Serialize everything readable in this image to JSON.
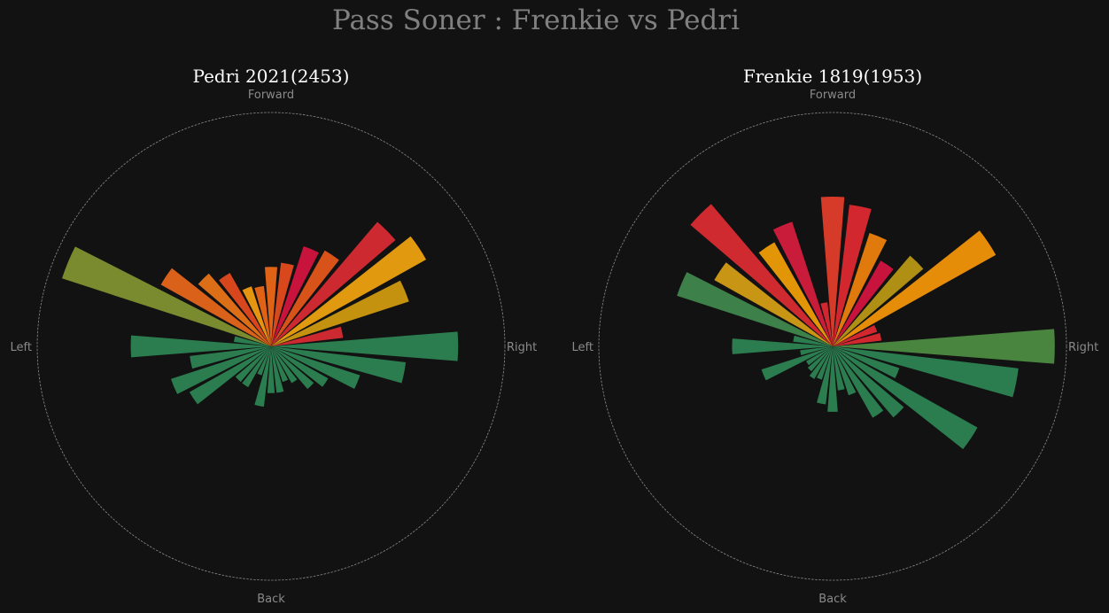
{
  "figure": {
    "title": "Pass Soner : Frenkie vs Pedri",
    "background": "#121212",
    "title_color": "#808080",
    "label_color": "#8a8a8a",
    "circle_color": "#8c8c8c"
  },
  "chart_data": [
    {
      "type": "polar-bar",
      "title": "Pedri 2021(2453)",
      "direction_labels": [
        "Forward",
        "Right",
        "Back",
        "Left"
      ],
      "angle_unit": "degrees clockwise from Forward",
      "radial_max": 100,
      "grid": false,
      "bars": [
        {
          "angle": 0,
          "value": 34,
          "color": "#e06216"
        },
        {
          "angle": 11.25,
          "value": 36,
          "color": "#d9481c"
        },
        {
          "angle": 22.5,
          "value": 45,
          "color": "#c8143c"
        },
        {
          "angle": 33.75,
          "value": 47,
          "color": "#d8531a"
        },
        {
          "angle": 45,
          "value": 70,
          "color": "#cc2a30"
        },
        {
          "angle": 56.25,
          "value": 76,
          "color": "#e19a10"
        },
        {
          "angle": 67.5,
          "value": 62,
          "color": "#c4920e"
        },
        {
          "angle": 78.75,
          "value": 31,
          "color": "#cc2a30"
        },
        {
          "angle": 90,
          "value": 80,
          "color": "#2b7d4f"
        },
        {
          "angle": 101.25,
          "value": 58,
          "color": "#2b7d4f"
        },
        {
          "angle": 112.5,
          "value": 40,
          "color": "#2b7d4f"
        },
        {
          "angle": 123.75,
          "value": 28,
          "color": "#2b7d4f"
        },
        {
          "angle": 135,
          "value": 24,
          "color": "#2b7d4f"
        },
        {
          "angle": 146.25,
          "value": 18,
          "color": "#2b7d4f"
        },
        {
          "angle": 157.5,
          "value": 16,
          "color": "#2b7d4f"
        },
        {
          "angle": 168.75,
          "value": 20,
          "color": "#2b7d4f"
        },
        {
          "angle": 180,
          "value": 20,
          "color": "#2b7d4f"
        },
        {
          "angle": 191.25,
          "value": 26,
          "color": "#2b7d4f"
        },
        {
          "angle": 202.5,
          "value": 13,
          "color": "#2b7d4f"
        },
        {
          "angle": 213.75,
          "value": 20,
          "color": "#2b7d4f"
        },
        {
          "angle": 225,
          "value": 20,
          "color": "#2b7d4f"
        },
        {
          "angle": 236.25,
          "value": 40,
          "color": "#2b7d4f"
        },
        {
          "angle": 247.5,
          "value": 45,
          "color": "#2b7d4f"
        },
        {
          "angle": 258.75,
          "value": 35,
          "color": "#2b7d4f"
        },
        {
          "angle": 270,
          "value": 60,
          "color": "#2b7d4f"
        },
        {
          "angle": 281.25,
          "value": 16,
          "color": "#2b7d4f"
        },
        {
          "angle": 292.5,
          "value": 94,
          "color": "#7a8a2e"
        },
        {
          "angle": 303.75,
          "value": 54,
          "color": "#d9611a"
        },
        {
          "angle": 315,
          "value": 41,
          "color": "#dd6e18"
        },
        {
          "angle": 326.25,
          "value": 36,
          "color": "#d7461c"
        },
        {
          "angle": 337.5,
          "value": 27,
          "color": "#e59510"
        },
        {
          "angle": 348.75,
          "value": 26,
          "color": "#e06216"
        }
      ]
    },
    {
      "type": "polar-bar",
      "title": "Frenkie 1819(1953)",
      "direction_labels": [
        "Forward",
        "Right",
        "Back",
        "Left"
      ],
      "angle_unit": "degrees clockwise from Forward",
      "radial_max": 100,
      "grid": false,
      "bars": [
        {
          "angle": 0,
          "value": 64,
          "color": "#d63a28"
        },
        {
          "angle": 11.25,
          "value": 61,
          "color": "#d3272f"
        },
        {
          "angle": 22.5,
          "value": 51,
          "color": "#e07a0c"
        },
        {
          "angle": 33.75,
          "value": 42,
          "color": "#c8143c"
        },
        {
          "angle": 45,
          "value": 51,
          "color": "#b09014"
        },
        {
          "angle": 56.25,
          "value": 80,
          "color": "#e58c08"
        },
        {
          "angle": 67.5,
          "value": 20,
          "color": "#d3272f"
        },
        {
          "angle": 78.75,
          "value": 21,
          "color": "#d3272f"
        },
        {
          "angle": 90,
          "value": 95,
          "color": "#4a8540"
        },
        {
          "angle": 101.25,
          "value": 80,
          "color": "#2b7d4f"
        },
        {
          "angle": 112.5,
          "value": 30,
          "color": "#2b7d4f"
        },
        {
          "angle": 123.75,
          "value": 71,
          "color": "#2b7d4f"
        },
        {
          "angle": 135,
          "value": 40,
          "color": "#2b7d4f"
        },
        {
          "angle": 146.25,
          "value": 35,
          "color": "#2b7d4f"
        },
        {
          "angle": 157.5,
          "value": 22,
          "color": "#2b7d4f"
        },
        {
          "angle": 168.75,
          "value": 19,
          "color": "#2b7d4f"
        },
        {
          "angle": 180,
          "value": 28,
          "color": "#2b7d4f"
        },
        {
          "angle": 191.25,
          "value": 25,
          "color": "#2b7d4f"
        },
        {
          "angle": 202.5,
          "value": 15,
          "color": "#2b7d4f"
        },
        {
          "angle": 213.75,
          "value": 16,
          "color": "#2b7d4f"
        },
        {
          "angle": 225,
          "value": 14,
          "color": "#2b7d4f"
        },
        {
          "angle": 236.25,
          "value": 13,
          "color": "#2b7d4f"
        },
        {
          "angle": 247.5,
          "value": 32,
          "color": "#2b7d4f"
        },
        {
          "angle": 258.75,
          "value": 14,
          "color": "#2b7d4f"
        },
        {
          "angle": 270,
          "value": 43,
          "color": "#2b7d4f"
        },
        {
          "angle": 281.25,
          "value": 17,
          "color": "#2b7d4f"
        },
        {
          "angle": 292.5,
          "value": 70,
          "color": "#3d8049"
        },
        {
          "angle": 303.75,
          "value": 58,
          "color": "#c89614"
        },
        {
          "angle": 315,
          "value": 80,
          "color": "#cf2a30"
        },
        {
          "angle": 326.25,
          "value": 51,
          "color": "#e39508"
        },
        {
          "angle": 337.5,
          "value": 56,
          "color": "#c81c3a"
        },
        {
          "angle": 348.75,
          "value": 19,
          "color": "#d3272f"
        }
      ]
    }
  ]
}
